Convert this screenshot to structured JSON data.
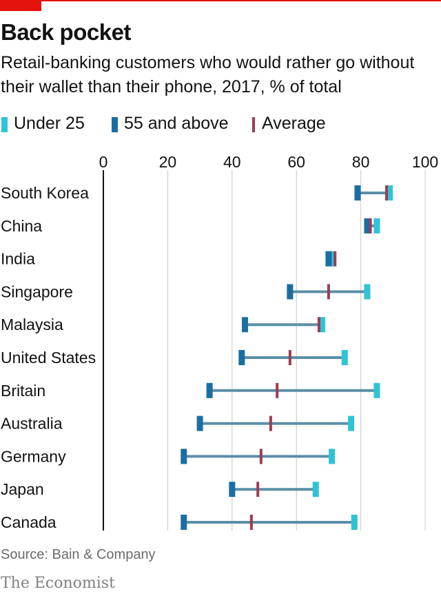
{
  "header": {
    "title": "Back pocket",
    "subtitle": "Retail-banking customers who would rather go without their wallet than their phone, 2017, % of total"
  },
  "legend": {
    "items": [
      {
        "label": "Under 25",
        "color": "#2ec4d6"
      },
      {
        "label": "55 and above",
        "color": "#1a6ea3"
      },
      {
        "label": "Average",
        "color": "#a13a52"
      }
    ]
  },
  "colors": {
    "under25": "#2ec4d6",
    "over55": "#1a6ea3",
    "average": "#a13a52",
    "connector": "#5b8fa6",
    "grid": "#c8c8c8",
    "axis": "#121212",
    "brand_red": "#e3120b"
  },
  "chart_data": {
    "type": "dumbbell",
    "title": "Back pocket",
    "subtitle": "Retail-banking customers who would rather go without their wallet than their phone, 2017, % of total",
    "xlim": [
      0,
      100
    ],
    "ticks": [
      0,
      20,
      40,
      60,
      80,
      100
    ],
    "grid": true,
    "legend_position": "top-left",
    "categories": [
      "South Korea",
      "China",
      "India",
      "Singapore",
      "Malaysia",
      "United States",
      "Britain",
      "Australia",
      "Germany",
      "Japan",
      "Canada"
    ],
    "series": [
      {
        "name": "Under 25",
        "values": [
          89,
          85,
          71,
          82,
          68,
          75,
          85,
          77,
          71,
          66,
          78
        ]
      },
      {
        "name": "55 and above",
        "values": [
          79,
          82,
          70,
          58,
          44,
          43,
          33,
          30,
          25,
          40,
          25
        ]
      },
      {
        "name": "Average",
        "values": [
          88,
          83,
          72,
          70,
          67,
          58,
          54,
          52,
          49,
          48,
          46
        ]
      }
    ]
  },
  "footer": {
    "source": "Source: Bain & Company",
    "brand": "The Economist"
  }
}
